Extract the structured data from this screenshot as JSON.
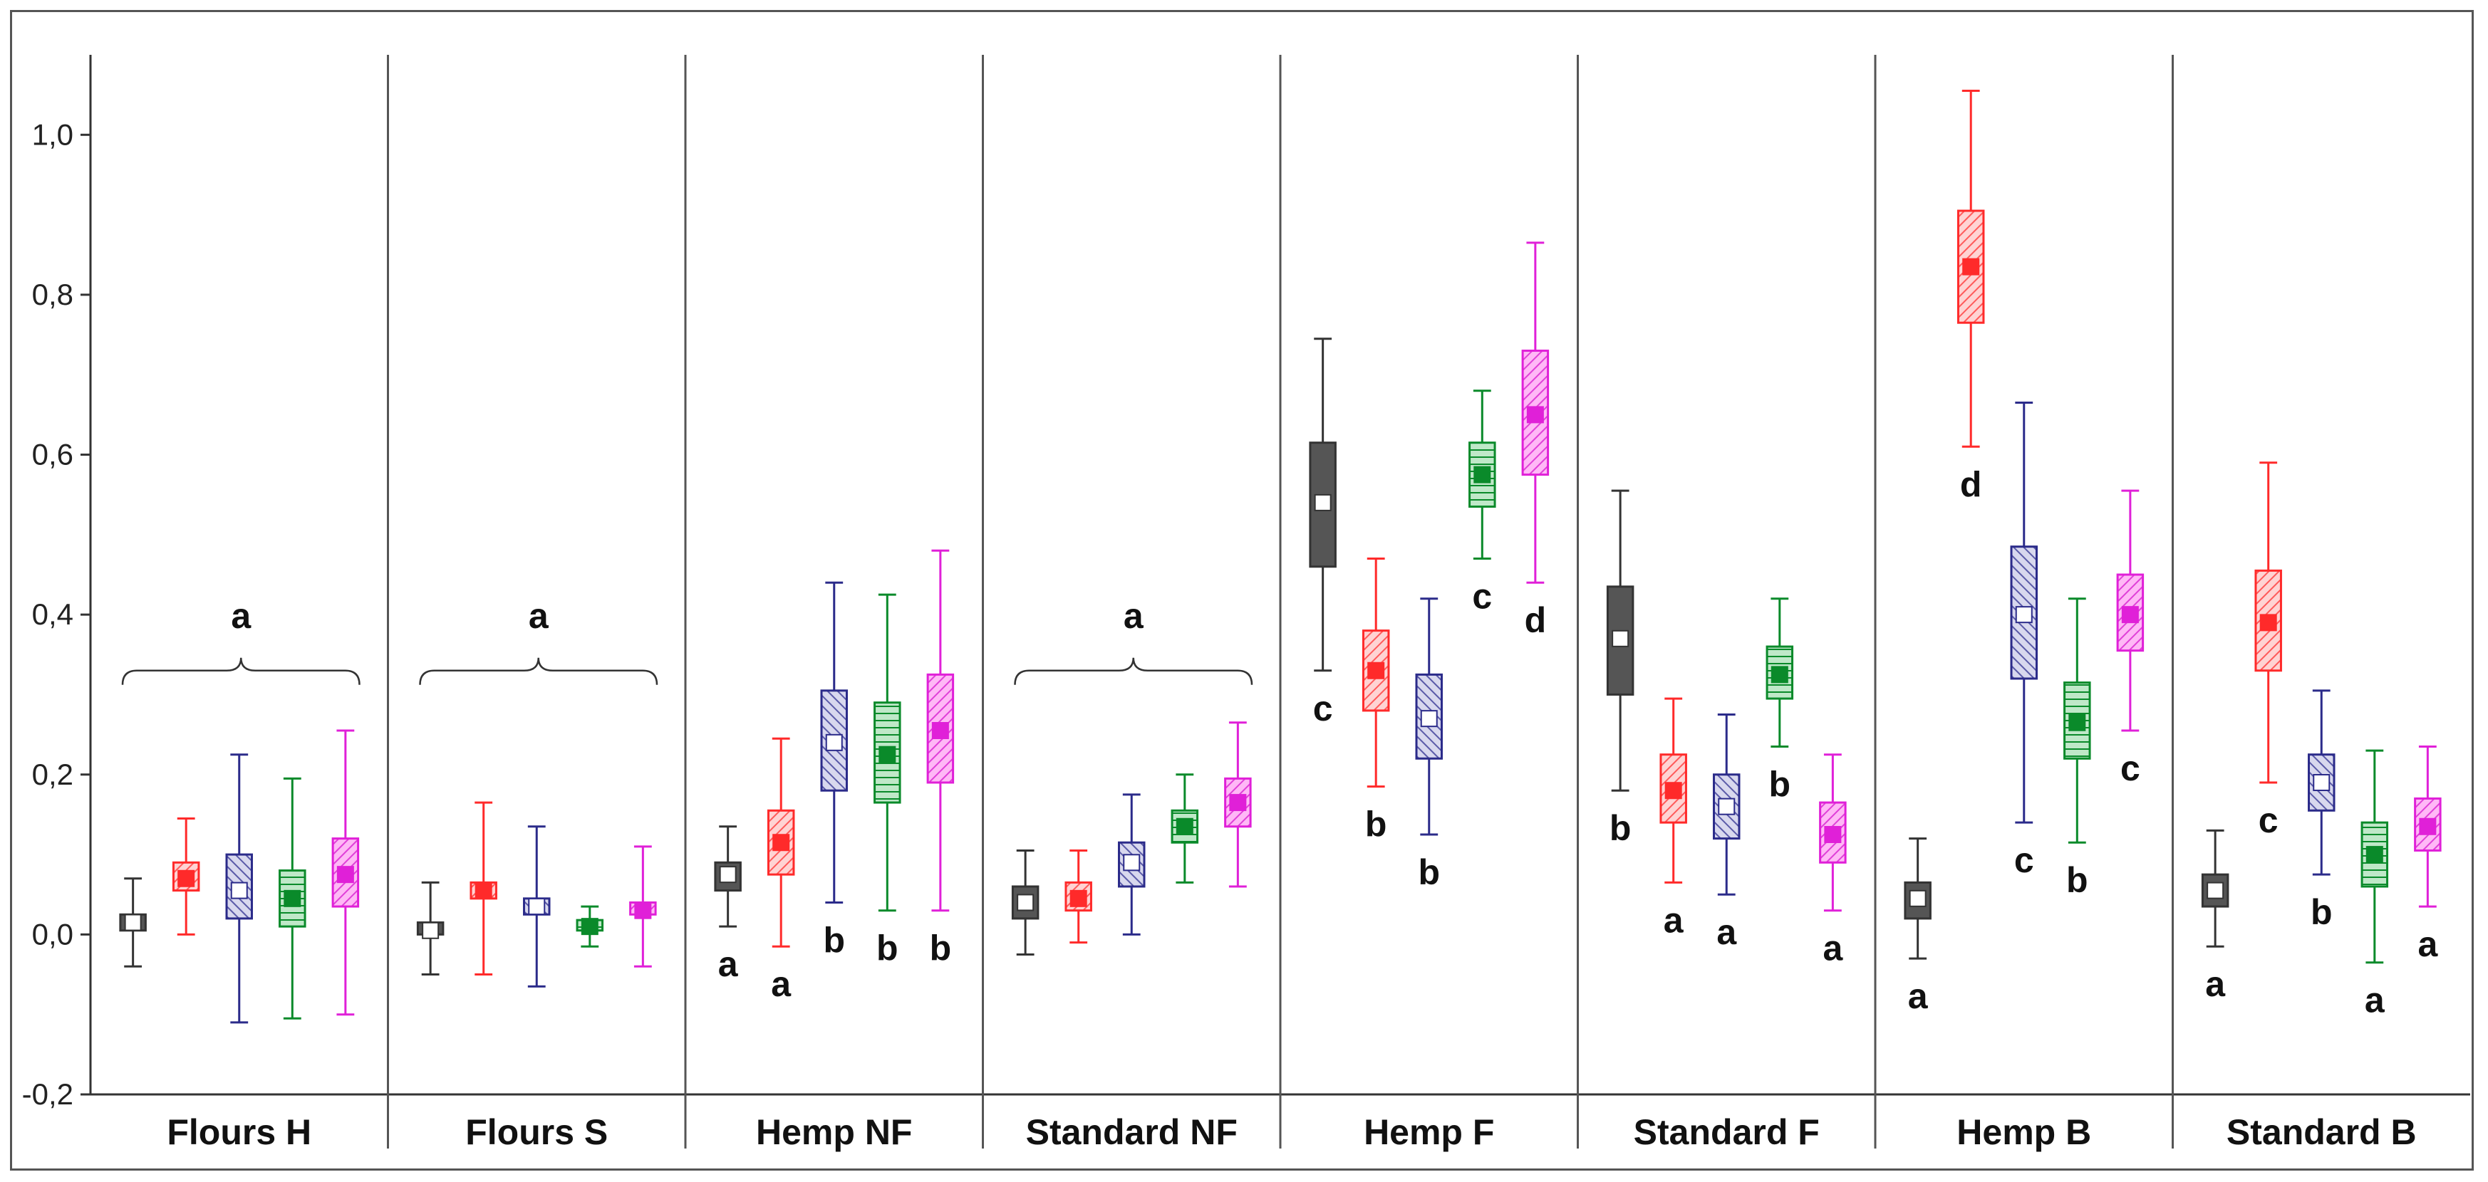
{
  "chart_data": {
    "type": "boxplot",
    "title": "",
    "xlabel": "",
    "ylabel": "",
    "ylim": [
      -0.2,
      1.1
    ],
    "y_ticks": [
      {
        "v": -0.2,
        "label": "-0,2"
      },
      {
        "v": 0.0,
        "label": "0,0"
      },
      {
        "v": 0.2,
        "label": "0,2"
      },
      {
        "v": 0.4,
        "label": "0,4"
      },
      {
        "v": 0.6,
        "label": "0,6"
      },
      {
        "v": 0.8,
        "label": "0,8"
      },
      {
        "v": 1.0,
        "label": "1,0"
      }
    ],
    "series_colors": [
      "#333333",
      "#ff2a2a",
      "#2b2b8a",
      "#0a8a2a",
      "#e020d8"
    ],
    "groups": [
      {
        "name": "Flours H",
        "bracket": {
          "label": "a",
          "y": 0.33
        },
        "boxes": [
          {
            "min": -0.04,
            "q1": 0.005,
            "median": 0.015,
            "q3": 0.025,
            "max": 0.07,
            "letter": ""
          },
          {
            "min": 0.0,
            "q1": 0.055,
            "median": 0.07,
            "q3": 0.09,
            "max": 0.145,
            "letter": ""
          },
          {
            "min": -0.11,
            "q1": 0.02,
            "median": 0.055,
            "q3": 0.1,
            "max": 0.225,
            "letter": ""
          },
          {
            "min": -0.105,
            "q1": 0.01,
            "median": 0.045,
            "q3": 0.08,
            "max": 0.195,
            "letter": ""
          },
          {
            "min": -0.1,
            "q1": 0.035,
            "median": 0.075,
            "q3": 0.12,
            "max": 0.255,
            "letter": ""
          }
        ]
      },
      {
        "name": "Flours S",
        "bracket": {
          "label": "a",
          "y": 0.33
        },
        "boxes": [
          {
            "min": -0.05,
            "q1": 0.0,
            "median": 0.005,
            "q3": 0.015,
            "max": 0.065,
            "letter": ""
          },
          {
            "min": -0.05,
            "q1": 0.045,
            "median": 0.055,
            "q3": 0.065,
            "max": 0.165,
            "letter": ""
          },
          {
            "min": -0.065,
            "q1": 0.025,
            "median": 0.035,
            "q3": 0.045,
            "max": 0.135,
            "letter": ""
          },
          {
            "min": -0.015,
            "q1": 0.005,
            "median": 0.01,
            "q3": 0.018,
            "max": 0.035,
            "letter": ""
          },
          {
            "min": -0.04,
            "q1": 0.025,
            "median": 0.03,
            "q3": 0.04,
            "max": 0.11,
            "letter": ""
          }
        ]
      },
      {
        "name": "Hemp NF",
        "boxes": [
          {
            "min": 0.01,
            "q1": 0.055,
            "median": 0.075,
            "q3": 0.09,
            "max": 0.135,
            "letter": "a"
          },
          {
            "min": -0.015,
            "q1": 0.075,
            "median": 0.115,
            "q3": 0.155,
            "max": 0.245,
            "letter": "a"
          },
          {
            "min": 0.04,
            "q1": 0.18,
            "median": 0.24,
            "q3": 0.305,
            "max": 0.44,
            "letter": "b"
          },
          {
            "min": 0.03,
            "q1": 0.165,
            "median": 0.225,
            "q3": 0.29,
            "max": 0.425,
            "letter": "b"
          },
          {
            "min": 0.03,
            "q1": 0.19,
            "median": 0.255,
            "q3": 0.325,
            "max": 0.48,
            "letter": "b"
          }
        ]
      },
      {
        "name": "Standard NF",
        "bracket": {
          "label": "a",
          "y": 0.33
        },
        "boxes": [
          {
            "min": -0.025,
            "q1": 0.02,
            "median": 0.04,
            "q3": 0.06,
            "max": 0.105,
            "letter": ""
          },
          {
            "min": -0.01,
            "q1": 0.03,
            "median": 0.045,
            "q3": 0.065,
            "max": 0.105,
            "letter": ""
          },
          {
            "min": 0.0,
            "q1": 0.06,
            "median": 0.09,
            "q3": 0.115,
            "max": 0.175,
            "letter": ""
          },
          {
            "min": 0.065,
            "q1": 0.115,
            "median": 0.135,
            "q3": 0.155,
            "max": 0.2,
            "letter": ""
          },
          {
            "min": 0.06,
            "q1": 0.135,
            "median": 0.165,
            "q3": 0.195,
            "max": 0.265,
            "letter": ""
          }
        ]
      },
      {
        "name": "Hemp F",
        "boxes": [
          {
            "min": 0.33,
            "q1": 0.46,
            "median": 0.54,
            "q3": 0.615,
            "max": 0.745,
            "letter": "c"
          },
          {
            "min": 0.185,
            "q1": 0.28,
            "median": 0.33,
            "q3": 0.38,
            "max": 0.47,
            "letter": "b"
          },
          {
            "min": 0.125,
            "q1": 0.22,
            "median": 0.27,
            "q3": 0.325,
            "max": 0.42,
            "letter": "b"
          },
          {
            "min": 0.47,
            "q1": 0.535,
            "median": 0.575,
            "q3": 0.615,
            "max": 0.68,
            "letter": "c"
          },
          {
            "min": 0.44,
            "q1": 0.575,
            "median": 0.65,
            "q3": 0.73,
            "max": 0.865,
            "letter": "d"
          }
        ]
      },
      {
        "name": "Standard F",
        "boxes": [
          {
            "min": 0.18,
            "q1": 0.3,
            "median": 0.37,
            "q3": 0.435,
            "max": 0.555,
            "letter": "b"
          },
          {
            "min": 0.065,
            "q1": 0.14,
            "median": 0.18,
            "q3": 0.225,
            "max": 0.295,
            "letter": "a"
          },
          {
            "min": 0.05,
            "q1": 0.12,
            "median": 0.16,
            "q3": 0.2,
            "max": 0.275,
            "letter": "a"
          },
          {
            "min": 0.235,
            "q1": 0.295,
            "median": 0.325,
            "q3": 0.36,
            "max": 0.42,
            "letter": "b"
          },
          {
            "min": 0.03,
            "q1": 0.09,
            "median": 0.125,
            "q3": 0.165,
            "max": 0.225,
            "letter": "a"
          }
        ]
      },
      {
        "name": "Hemp B",
        "boxes": [
          {
            "min": -0.03,
            "q1": 0.02,
            "median": 0.045,
            "q3": 0.065,
            "max": 0.12,
            "letter": "a"
          },
          {
            "min": 0.61,
            "q1": 0.765,
            "median": 0.835,
            "q3": 0.905,
            "max": 1.055,
            "letter": "d"
          },
          {
            "min": 0.14,
            "q1": 0.32,
            "median": 0.4,
            "q3": 0.485,
            "max": 0.665,
            "letter": "c"
          },
          {
            "min": 0.115,
            "q1": 0.22,
            "median": 0.265,
            "q3": 0.315,
            "max": 0.42,
            "letter": "b"
          },
          {
            "min": 0.255,
            "q1": 0.355,
            "median": 0.4,
            "q3": 0.45,
            "max": 0.555,
            "letter": "c"
          }
        ]
      },
      {
        "name": "Standard B",
        "boxes": [
          {
            "min": -0.015,
            "q1": 0.035,
            "median": 0.055,
            "q3": 0.075,
            "max": 0.13,
            "letter": "a"
          },
          {
            "min": 0.19,
            "q1": 0.33,
            "median": 0.39,
            "q3": 0.455,
            "max": 0.59,
            "letter": "c"
          },
          {
            "min": 0.075,
            "q1": 0.155,
            "median": 0.19,
            "q3": 0.225,
            "max": 0.305,
            "letter": "b"
          },
          {
            "min": -0.035,
            "q1": 0.06,
            "median": 0.1,
            "q3": 0.14,
            "max": 0.23,
            "letter": "a"
          },
          {
            "min": 0.035,
            "q1": 0.105,
            "median": 0.135,
            "q3": 0.17,
            "max": 0.235,
            "letter": "a"
          }
        ]
      }
    ]
  }
}
